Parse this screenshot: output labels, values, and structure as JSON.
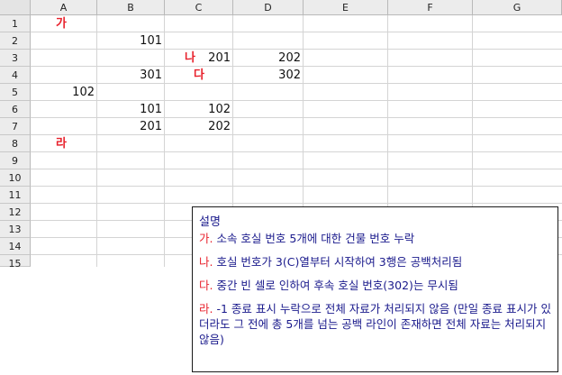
{
  "columns": [
    "A",
    "B",
    "C",
    "D",
    "E",
    "F",
    "G"
  ],
  "rows": [
    "1",
    "2",
    "3",
    "4",
    "5",
    "6",
    "7",
    "8",
    "9",
    "10",
    "11",
    "12",
    "13",
    "14",
    "15"
  ],
  "cells": {
    "A1": "가",
    "B2": "101",
    "C3_mark": "나",
    "C3": "201",
    "D3": "202",
    "B4": "301",
    "C4_mark": "다",
    "D4": "302",
    "A5": "102",
    "B6": "101",
    "C6": "102",
    "B7": "201",
    "C7": "202",
    "A8": "라"
  },
  "note": {
    "title": "설명",
    "items": [
      {
        "label": "가.",
        "text": " 소속 호실 번호 5개에 대한 건물 번호 누락"
      },
      {
        "label": "나.",
        "text": " 호실 번호가 3(C)열부터 시작하여 3행은 공백처리됨"
      },
      {
        "label": "다.",
        "text": " 중간 빈 셀로 인하여 후속 호실 번호(302)는 무시됨"
      },
      {
        "label": "라.",
        "text": " -1 종료 표시 누락으로 전체 자료가 처리되지 않음 (만일 종료 표시가 있더라도 그 전에 총 5개를 넘는 공백 라인이 존재하면 전체 자료는 처리되지 않음)"
      }
    ]
  },
  "colors": {
    "mark": "#e8212c",
    "note_text": "#1a1a8c"
  }
}
